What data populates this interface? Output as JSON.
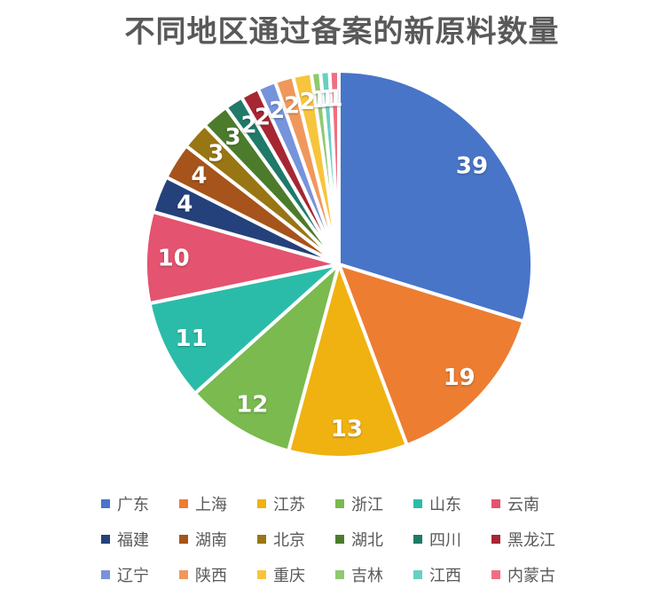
{
  "title": {
    "text": "不同地区通过备案的新原料数量",
    "color": "#595959"
  },
  "chart_data": {
    "type": "pie",
    "title": "不同地区通过备案的新原料数量",
    "start_angle_deg": 0,
    "direction": "clockwise",
    "total": 131,
    "data_labels_shown": true,
    "legend_position": "bottom",
    "legend_rows": 3,
    "legend_columns": 6,
    "categories": [
      "广东",
      "上海",
      "江苏",
      "浙江",
      "山东",
      "云南",
      "福建",
      "湖南",
      "北京",
      "湖北",
      "四川",
      "黑龙江",
      "辽宁",
      "陕西",
      "重庆",
      "吉林",
      "江西",
      "内蒙古"
    ],
    "values": [
      39,
      19,
      13,
      12,
      11,
      10,
      4,
      4,
      3,
      3,
      2,
      2,
      2,
      2,
      2,
      1,
      1,
      1
    ],
    "colors": [
      "#4875C8",
      "#ED7D31",
      "#F0B211",
      "#7ABA4E",
      "#2BBCA9",
      "#E4536F",
      "#24417B",
      "#A6541B",
      "#997614",
      "#4C7C2B",
      "#1F7A68",
      "#A72633",
      "#7793DB",
      "#F0985C",
      "#F7C53C",
      "#8FC970",
      "#66D0C3",
      "#EE6F83"
    ],
    "label_color": "#FFFFFF",
    "slice_border_color": "#FFFFFF"
  }
}
